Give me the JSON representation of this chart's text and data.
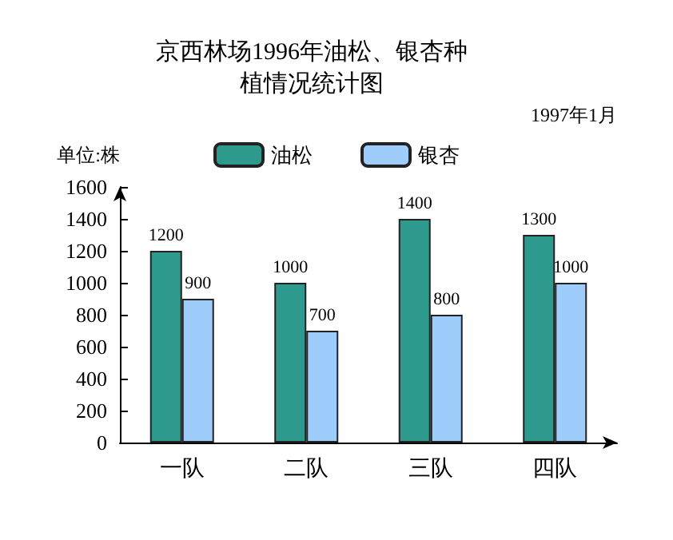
{
  "chart_data": {
    "type": "bar",
    "title": "京西林场1996年油松、银杏种植情况统计图",
    "ylabel": "单位:株",
    "annotations": [
      "1997年1月"
    ],
    "categories": [
      "一队",
      "二队",
      "三队",
      "四队"
    ],
    "series": [
      {
        "name": "油松",
        "color": "#2e9a8e",
        "values": [
          1200,
          1000,
          1400,
          1300
        ]
      },
      {
        "name": "银杏",
        "color": "#9fcdfb",
        "values": [
          900,
          700,
          800,
          1000
        ]
      }
    ],
    "ylim": [
      0,
      1600
    ],
    "yticks": [
      0,
      200,
      400,
      600,
      800,
      1000,
      1200,
      1400,
      1600
    ],
    "data_labels": true,
    "grid": false,
    "legend": "top"
  }
}
